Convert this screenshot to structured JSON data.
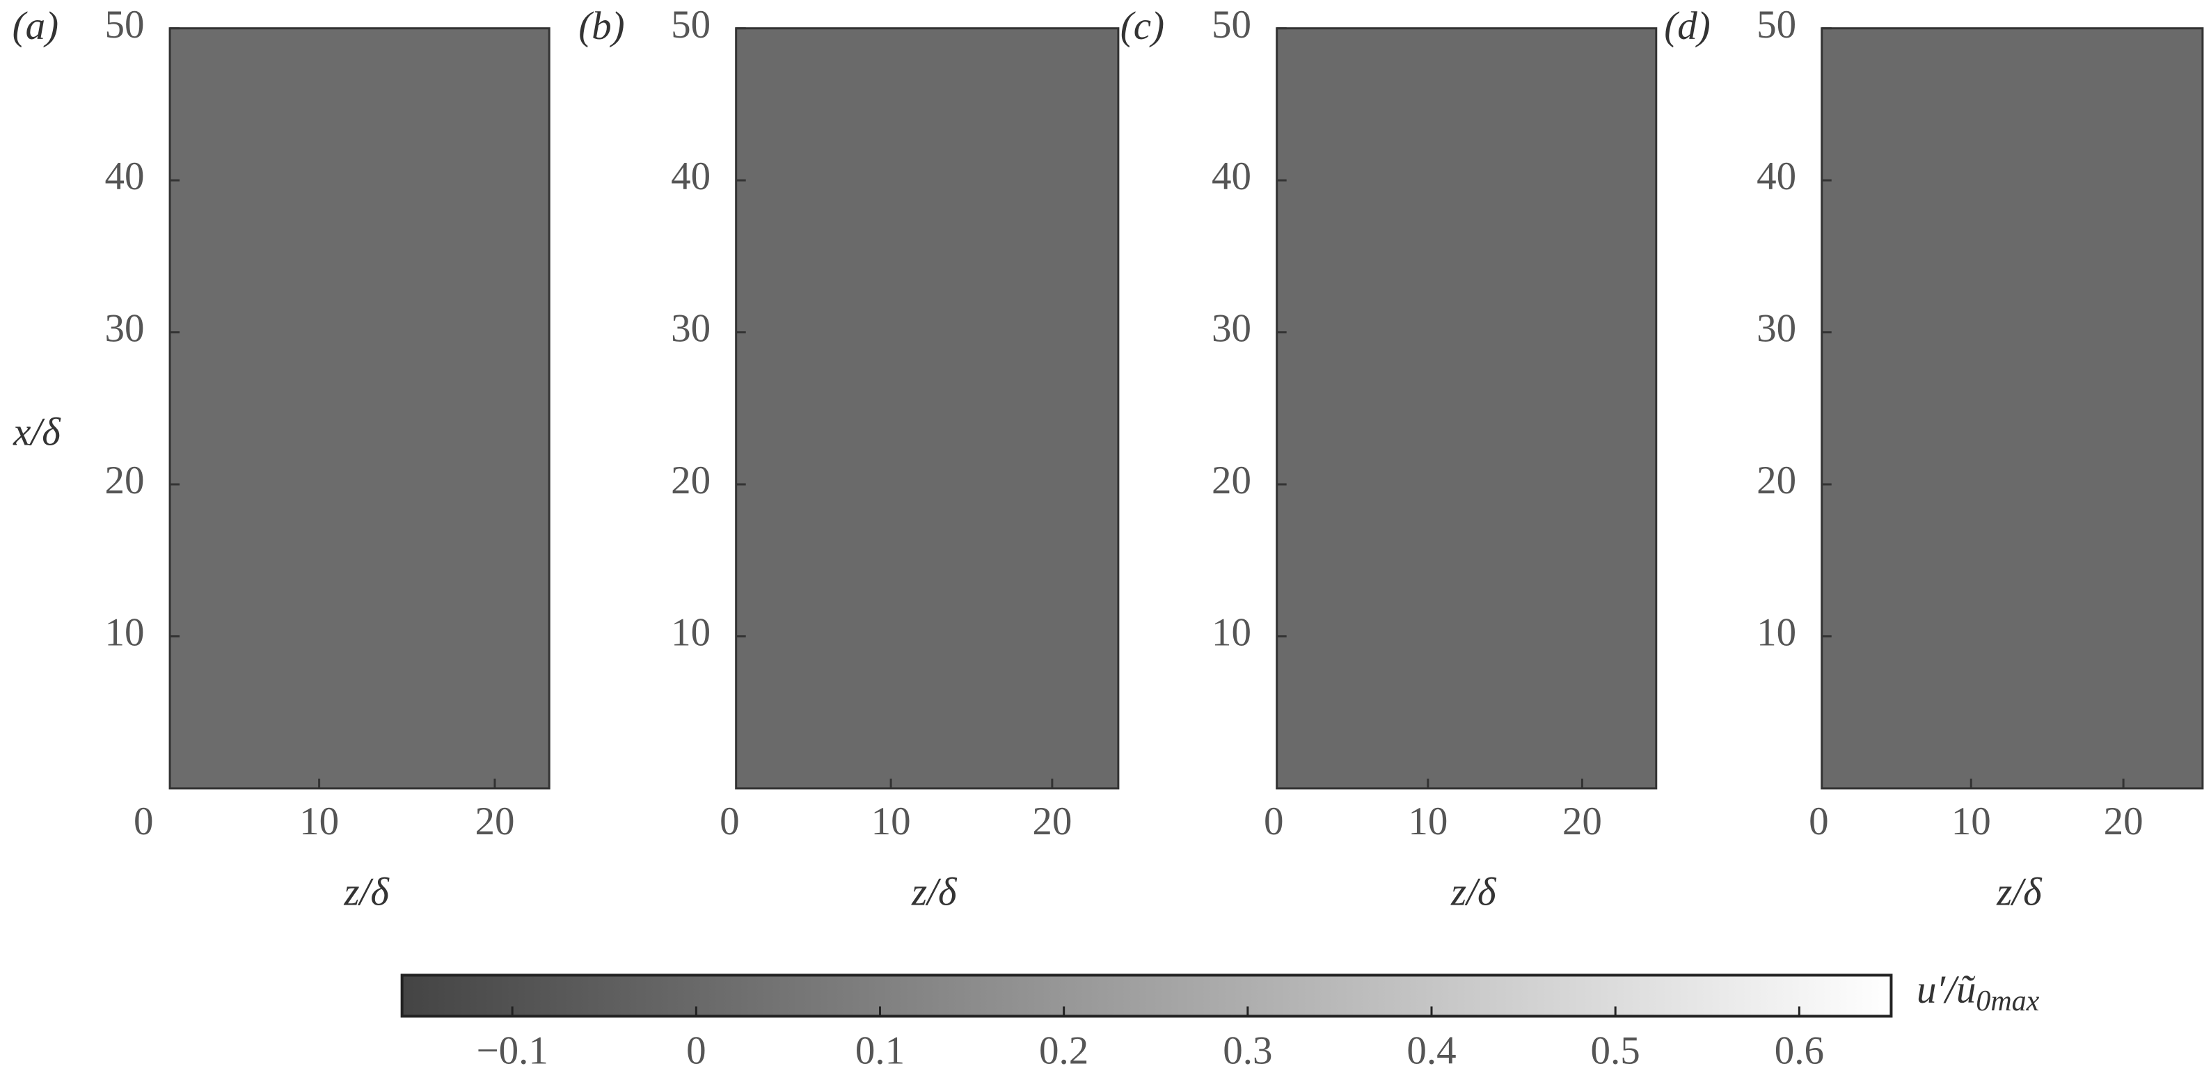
{
  "chart_data": [
    {
      "type": "heatmap",
      "panel_label": "(a)",
      "ylabel": "x/δ",
      "xlabel": "z/δ",
      "xlim": [
        1.5,
        23.1
      ],
      "ylim": [
        0,
        50
      ],
      "xticks": [
        0,
        10,
        20
      ],
      "yticks": [
        10,
        20,
        30,
        40,
        50
      ],
      "color": "#6c6c6c"
    },
    {
      "type": "heatmap",
      "panel_label": "(b)",
      "xlabel": "z/δ",
      "xlim": [
        0.4,
        24.1
      ],
      "ylim": [
        0,
        50
      ],
      "xticks": [
        0,
        10,
        20
      ],
      "yticks": [
        10,
        20,
        30,
        40,
        50
      ],
      "color": "#6a6a6a"
    },
    {
      "type": "heatmap",
      "panel_label": "(c)",
      "xlabel": "z/δ",
      "xlim": [
        0.2,
        24.8
      ],
      "ylim": [
        0,
        50
      ],
      "xticks": [
        0,
        10,
        20
      ],
      "yticks": [
        10,
        20,
        30,
        40,
        50
      ],
      "color": "#6a6a6a"
    },
    {
      "type": "heatmap",
      "panel_label": "(d)",
      "xlabel": "z/δ",
      "xlim": [
        0.2,
        25.2
      ],
      "ylim": [
        0,
        50
      ],
      "xticks": [
        0,
        10,
        20
      ],
      "yticks": [
        10,
        20,
        30,
        40,
        50
      ],
      "color": "#6a6a6a"
    },
    {
      "type": "colorbar",
      "label": "u′/ũ",
      "label_subscript": "0max",
      "xlim": [
        -0.16,
        0.65
      ],
      "xticks": [
        {
          "value": -0.1,
          "label": "−0.1"
        },
        0,
        0.1,
        0.2,
        0.3,
        0.4,
        0.5,
        0.6
      ],
      "colormap": [
        "#444444",
        "#ffffff"
      ]
    }
  ]
}
